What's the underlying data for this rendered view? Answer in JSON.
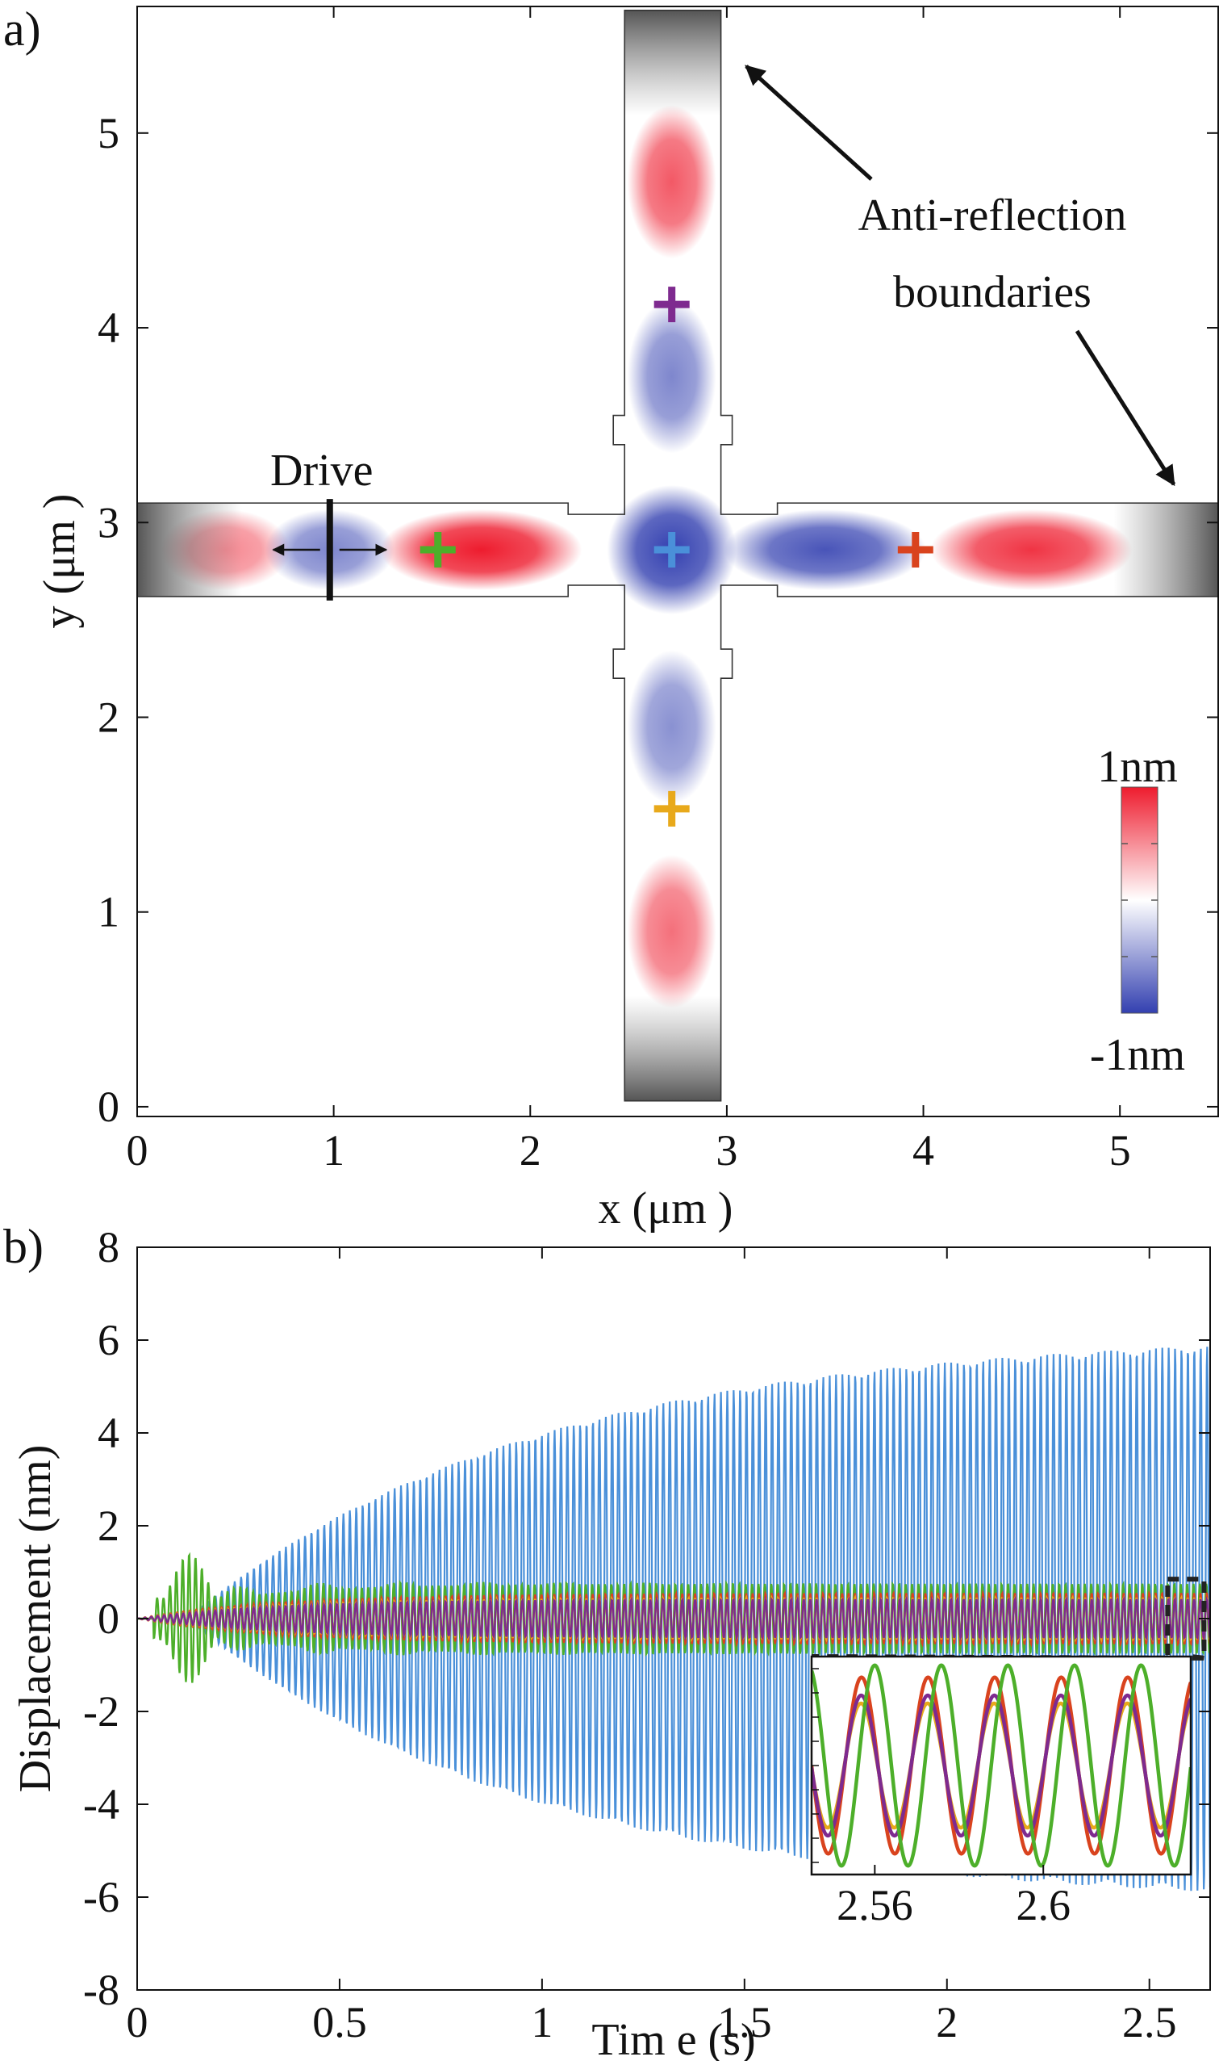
{
  "chart_data": [
    {
      "type": "heatmap",
      "panel_label": "a)",
      "xlabel": "x (μm )",
      "ylabel": "y (μm )",
      "xlim": [
        0,
        5.5
      ],
      "ylim": [
        -0.05,
        5.65
      ],
      "xticks": [
        "0",
        "1",
        "2",
        "3",
        "4",
        "5"
      ],
      "yticks": [
        "0",
        "1",
        "2",
        "3",
        "4",
        "5"
      ],
      "colorbar": {
        "max_label": "1nm",
        "min_label": "-1nm",
        "range": [
          -1,
          1
        ],
        "colors": [
          "#3340b0",
          "#ffffff",
          "#ee1c2e"
        ]
      },
      "drive_label": "Drive",
      "drive_x": 0.98,
      "annotation": [
        "Anti-reflection",
        "boundaries"
      ],
      "horizontal_arm": {
        "x": [
          0,
          5.5
        ],
        "y": [
          2.62,
          3.1
        ]
      },
      "vertical_arm": {
        "x": [
          2.48,
          2.97
        ],
        "y": [
          0.03,
          5.63
        ]
      },
      "field_lobes": [
        {
          "x": 0.45,
          "y": 2.86,
          "amplitude": 0.5
        },
        {
          "x": 0.98,
          "y": 2.86,
          "amplitude": -0.6
        },
        {
          "x": 1.75,
          "y": 2.86,
          "amplitude": 1.0
        },
        {
          "x": 2.72,
          "y": 2.86,
          "amplitude": -0.95
        },
        {
          "x": 3.5,
          "y": 2.86,
          "amplitude": -0.85
        },
        {
          "x": 4.55,
          "y": 2.86,
          "amplitude": 0.85
        },
        {
          "x": 2.72,
          "y": 4.75,
          "amplitude": 0.7
        },
        {
          "x": 2.72,
          "y": 3.75,
          "amplitude": -0.6
        },
        {
          "x": 2.72,
          "y": 1.95,
          "amplitude": -0.55
        },
        {
          "x": 2.72,
          "y": 0.9,
          "amplitude": 0.6
        }
      ],
      "probe_points": [
        {
          "x": 1.53,
          "y": 2.86,
          "color": "#4daf2a"
        },
        {
          "x": 2.72,
          "y": 2.86,
          "color": "#4a90d9"
        },
        {
          "x": 3.96,
          "y": 2.86,
          "color": "#d9431e"
        },
        {
          "x": 2.72,
          "y": 4.12,
          "color": "#7e2a8f"
        },
        {
          "x": 2.72,
          "y": 1.53,
          "color": "#e8a91b"
        }
      ]
    },
    {
      "type": "line",
      "panel_label": "b)",
      "xlabel": "Tim e (s)",
      "ylabel": "Displacement (nm)",
      "xlim": [
        0,
        2.65
      ],
      "ylim": [
        -8,
        8
      ],
      "xticks": [
        "0",
        "0.5",
        "1",
        "1.5",
        "2",
        "2.5"
      ],
      "yticks": [
        "-8",
        "-6",
        "-4",
        "-2",
        "0",
        "2",
        "4",
        "6",
        "8"
      ],
      "series": [
        {
          "color": "#4a90d9",
          "envelope": "6.2·(1−exp(−t/0.85)) after ~0.13 s",
          "max_amplitude": 6.2
        },
        {
          "color": "#4daf2a",
          "envelope": "burst 1.4 at 0.13 s, settling to ~0.75",
          "max_amplitude": 1.4
        },
        {
          "color": "#d9431e",
          "max_amplitude": 0.55
        },
        {
          "color": "#e8a91b",
          "max_amplitude": 0.45
        },
        {
          "color": "#7e2a8f",
          "max_amplitude": 0.4
        }
      ],
      "inset": {
        "xlim": [
          2.545,
          2.635
        ],
        "xticks": [
          "2.56",
          "2.6"
        ],
        "period_s": 0.0158,
        "amplitudes": {
          "green": 1.0,
          "red": 0.88,
          "purple": 0.7,
          "yellow": 0.62
        }
      }
    }
  ]
}
